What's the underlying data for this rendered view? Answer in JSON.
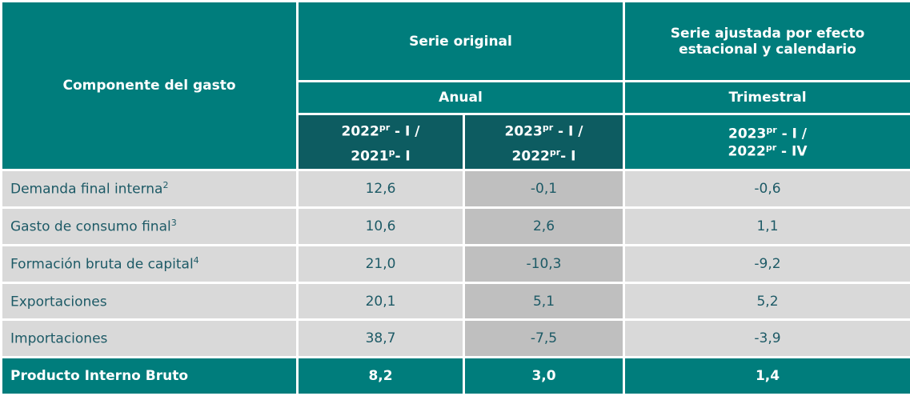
{
  "header": {
    "component": "Componente del gasto",
    "original": "Serie original",
    "adjusted": "Serie ajustada por efecto estacional y calendario",
    "annual": "Anual",
    "quarterly": "Trimestral",
    "periods": [
      {
        "y1": "2022",
        "s1": "pr",
        "m1": " - I /",
        "y2": "2021",
        "s2": "p",
        "m2": "- I"
      },
      {
        "y1": "2023",
        "s1": "pr",
        "m1": " - I /",
        "y2": "2022",
        "s2": "pr",
        "m2": "- I"
      },
      {
        "y1": "2023",
        "s1": "pr",
        "m1": " - I /",
        "y2": "2022",
        "s2": "pr",
        "m2": " - IV"
      }
    ]
  },
  "rows": [
    {
      "label": "Demanda final interna",
      "note": "2",
      "v": [
        "12,6",
        "-0,1",
        "-0,6"
      ]
    },
    {
      "label": "Gasto de consumo final",
      "note": "3",
      "v": [
        "10,6",
        "2,6",
        "1,1"
      ]
    },
    {
      "label": "Formación bruta de capital",
      "note": "4",
      "v": [
        "21,0",
        "-10,3",
        "-9,2"
      ]
    },
    {
      "label": "Exportaciones",
      "note": "",
      "v": [
        "20,1",
        "5,1",
        "5,2"
      ]
    },
    {
      "label": "Importaciones",
      "note": "",
      "v": [
        "38,7",
        "-7,5",
        "-3,9"
      ]
    }
  ],
  "total": {
    "label": "Producto Interno Bruto",
    "v": [
      "8,2",
      "3,0",
      "1,4"
    ]
  }
}
